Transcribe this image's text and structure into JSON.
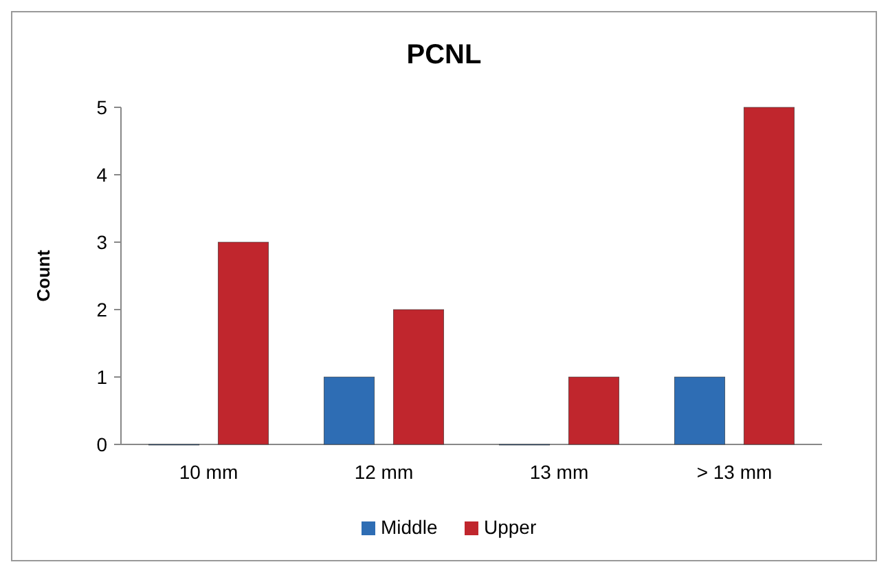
{
  "chart_data": {
    "type": "bar",
    "title": "PCNL",
    "ylabel": "Count",
    "categories": [
      "10 mm",
      "12 mm",
      "13 mm",
      "> 13 mm"
    ],
    "series": [
      {
        "name": "Middle",
        "color": "#2e6db4",
        "values": [
          0,
          1,
          0,
          1
        ]
      },
      {
        "name": "Upper",
        "color": "#c0262d",
        "values": [
          3,
          2,
          1,
          5
        ]
      }
    ],
    "ylim": [
      0,
      5
    ],
    "yticks": [
      0,
      1,
      2,
      3,
      4,
      5
    ],
    "grid": false,
    "legend": "bottom"
  }
}
